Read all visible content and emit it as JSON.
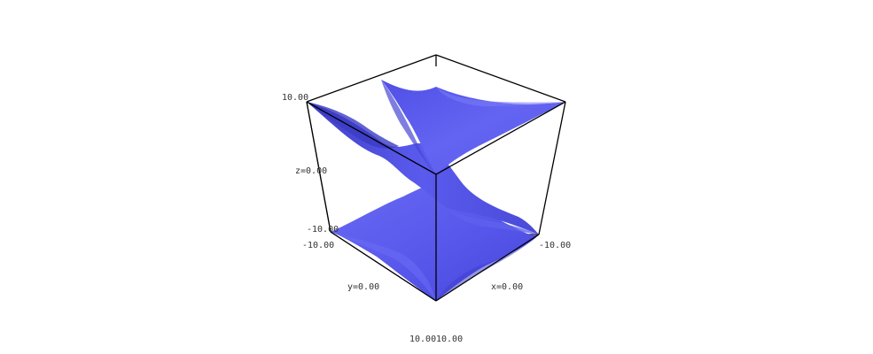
{
  "plot": {
    "surface_color": "#5b5bf0",
    "surface_shade_dark": "#3a3ac8",
    "surface_shade_light": "#8a8af5",
    "box_color": "#000000",
    "background": "#ffffff"
  },
  "labels": {
    "z_max": "10.00",
    "z_mid": "z=0.00",
    "z_min": "-10.00",
    "y_min": "-10.00",
    "y_mid": "y=0.00",
    "y_max": "10.00",
    "x_max": "10.00",
    "x_mid": "x=0.00",
    "x_min": "-10.00"
  }
}
